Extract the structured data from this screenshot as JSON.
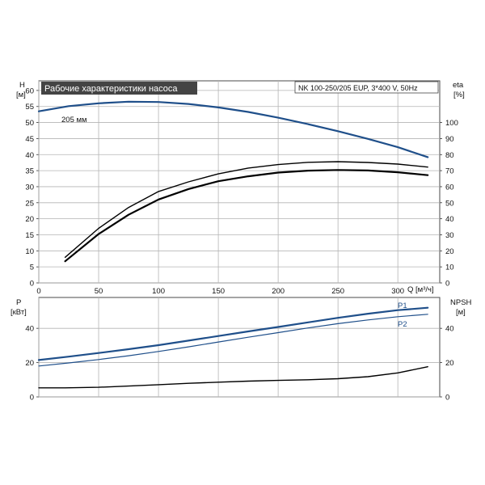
{
  "chart_data": [
    {
      "type": "line",
      "title": "Рабочие характеристики насоса",
      "subtitle": "NK 100-250/205 EUP, 3*400 V, 50Hz",
      "xlabel": "Q [м³/ч]",
      "x_ticks": [
        "0",
        "50",
        "100",
        "150",
        "200",
        "250",
        "300"
      ],
      "xlim": [
        0,
        335
      ],
      "ylabel_left": [
        "H",
        "[м]"
      ],
      "ylim_left": [
        0,
        63
      ],
      "y_ticks_left": [
        "0",
        "5",
        "10",
        "15",
        "20",
        "25",
        "30",
        "35",
        "40",
        "45",
        "50",
        "55",
        "60"
      ],
      "ylabel_right": [
        "eta",
        "[%]"
      ],
      "ylim_right": [
        0,
        126
      ],
      "y_ticks_right": [
        "0",
        "10",
        "20",
        "30",
        "40",
        "50",
        "60",
        "70",
        "80",
        "90",
        "100"
      ],
      "grid": true,
      "series": [
        {
          "name": "205 мм",
          "axis": "left",
          "color": "#1f4f8a",
          "x": [
            0,
            25,
            50,
            75,
            100,
            125,
            150,
            175,
            200,
            225,
            250,
            275,
            300,
            325
          ],
          "y": [
            53.5,
            55.1,
            56.0,
            56.5,
            56.4,
            55.8,
            54.7,
            53.3,
            51.5,
            49.5,
            47.3,
            44.9,
            42.3,
            39.2
          ]
        },
        {
          "name": "",
          "axis": "right",
          "color": "#000000",
          "x": [
            22,
            50,
            75,
            100,
            125,
            150,
            175,
            200,
            225,
            250,
            275,
            300,
            325
          ],
          "y": [
            16,
            34,
            47,
            57,
            63,
            68,
            71.6,
            73.8,
            75.2,
            75.6,
            75.1,
            74.1,
            72.2
          ]
        },
        {
          "name": "",
          "axis": "right",
          "color": "#000000",
          "x": [
            22,
            50,
            75,
            100,
            125,
            150,
            175,
            200,
            225,
            250,
            275,
            300,
            325
          ],
          "y": [
            13.5,
            30.5,
            42.5,
            52,
            58.5,
            63.4,
            66.5,
            68.8,
            70,
            70.4,
            70.1,
            69,
            67.2
          ]
        }
      ]
    },
    {
      "type": "line",
      "xlim": [
        0,
        335
      ],
      "ylabel_left": [
        "P",
        "[кВт]"
      ],
      "ylim_left": [
        0,
        58
      ],
      "y_ticks_left": [
        "0",
        "20",
        "40"
      ],
      "ylabel_right": [
        "NPSH",
        "[м]"
      ],
      "ylim_right": [
        0,
        58
      ],
      "y_ticks_right": [
        "0",
        "20",
        "40"
      ],
      "grid": true,
      "series": [
        {
          "name": "P1",
          "axis": "left",
          "color": "#1f4f8a",
          "x": [
            0,
            25,
            50,
            75,
            100,
            125,
            150,
            175,
            200,
            225,
            250,
            275,
            300,
            325
          ],
          "y": [
            21.5,
            23.5,
            25.6,
            27.8,
            30.2,
            32.8,
            35.5,
            38.2,
            40.8,
            43.5,
            46.1,
            48.5,
            50.6,
            52
          ]
        },
        {
          "name": "P2",
          "axis": "left",
          "color": "#1f4f8a",
          "x": [
            0,
            25,
            50,
            75,
            100,
            125,
            150,
            175,
            200,
            225,
            250,
            275,
            300,
            325
          ],
          "y": [
            18,
            19.8,
            21.8,
            24,
            26.5,
            29.2,
            32,
            34.8,
            37.5,
            40.2,
            42.7,
            44.9,
            46.8,
            48.2
          ]
        },
        {
          "name": "",
          "axis": "right",
          "color": "#000000",
          "x": [
            0,
            22,
            50,
            75,
            100,
            125,
            150,
            175,
            200,
            225,
            250,
            275,
            300,
            325
          ],
          "y": [
            5.3,
            5.3,
            5.6,
            6.3,
            7.1,
            7.9,
            8.6,
            9.2,
            9.6,
            10,
            10.6,
            11.8,
            14,
            17.6
          ]
        }
      ]
    }
  ]
}
